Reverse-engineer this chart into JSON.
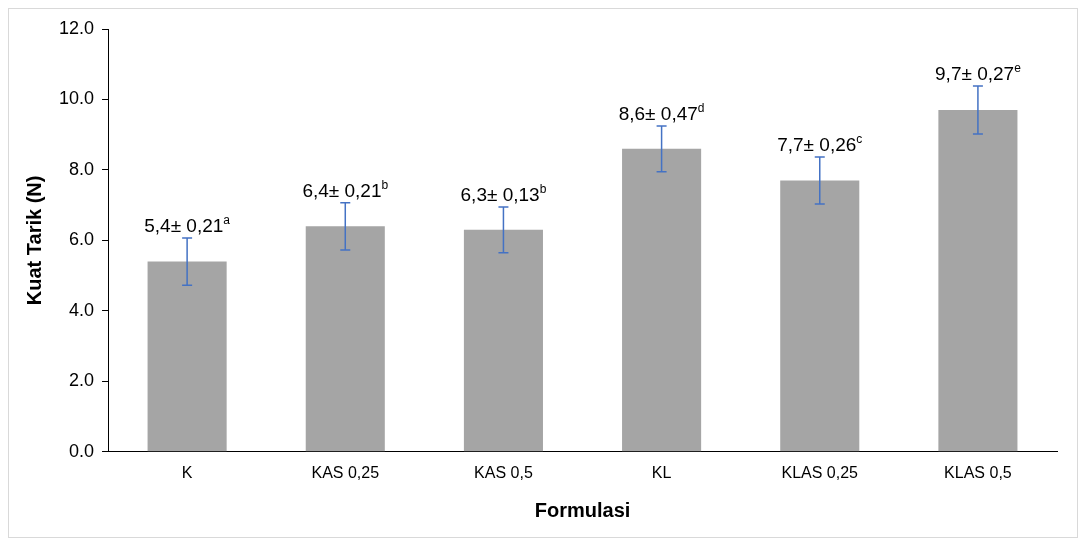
{
  "chart_data": {
    "type": "bar",
    "xlabel": "Formulasi",
    "ylabel": "Kuat Tarik (N)",
    "categories": [
      "K",
      "KAS 0,25",
      "KAS 0,5",
      "KL",
      "KLAS 0,25",
      "KLAS 0,5"
    ],
    "values": [
      5.4,
      6.4,
      6.3,
      8.6,
      7.7,
      9.7
    ],
    "errors": [
      0.67,
      0.67,
      0.65,
      0.65,
      0.67,
      0.68
    ],
    "value_labels": [
      "5,4± 0,21$^{a}$",
      "6,4± 0,21$^{b}$",
      "6,3± 0,13$^{b}$",
      "8,6± 0,47$^{d}$",
      "7,7± 0,26$^{c}$",
      "9,7± 0,27$^{e}$"
    ],
    "color": "#a5a5a5",
    "ylim": [
      0,
      12
    ],
    "yticks": [
      {
        "value": 0,
        "label": "0.0"
      },
      {
        "value": 2,
        "label": "2.0"
      },
      {
        "value": 4,
        "label": "4.0"
      },
      {
        "value": 6,
        "label": "6.0"
      },
      {
        "value": 8,
        "label": "8.0"
      },
      {
        "value": 10,
        "label": "10.0"
      },
      {
        "value": 12,
        "label": "12.0"
      }
    ],
    "grid": false,
    "legend": false
  }
}
